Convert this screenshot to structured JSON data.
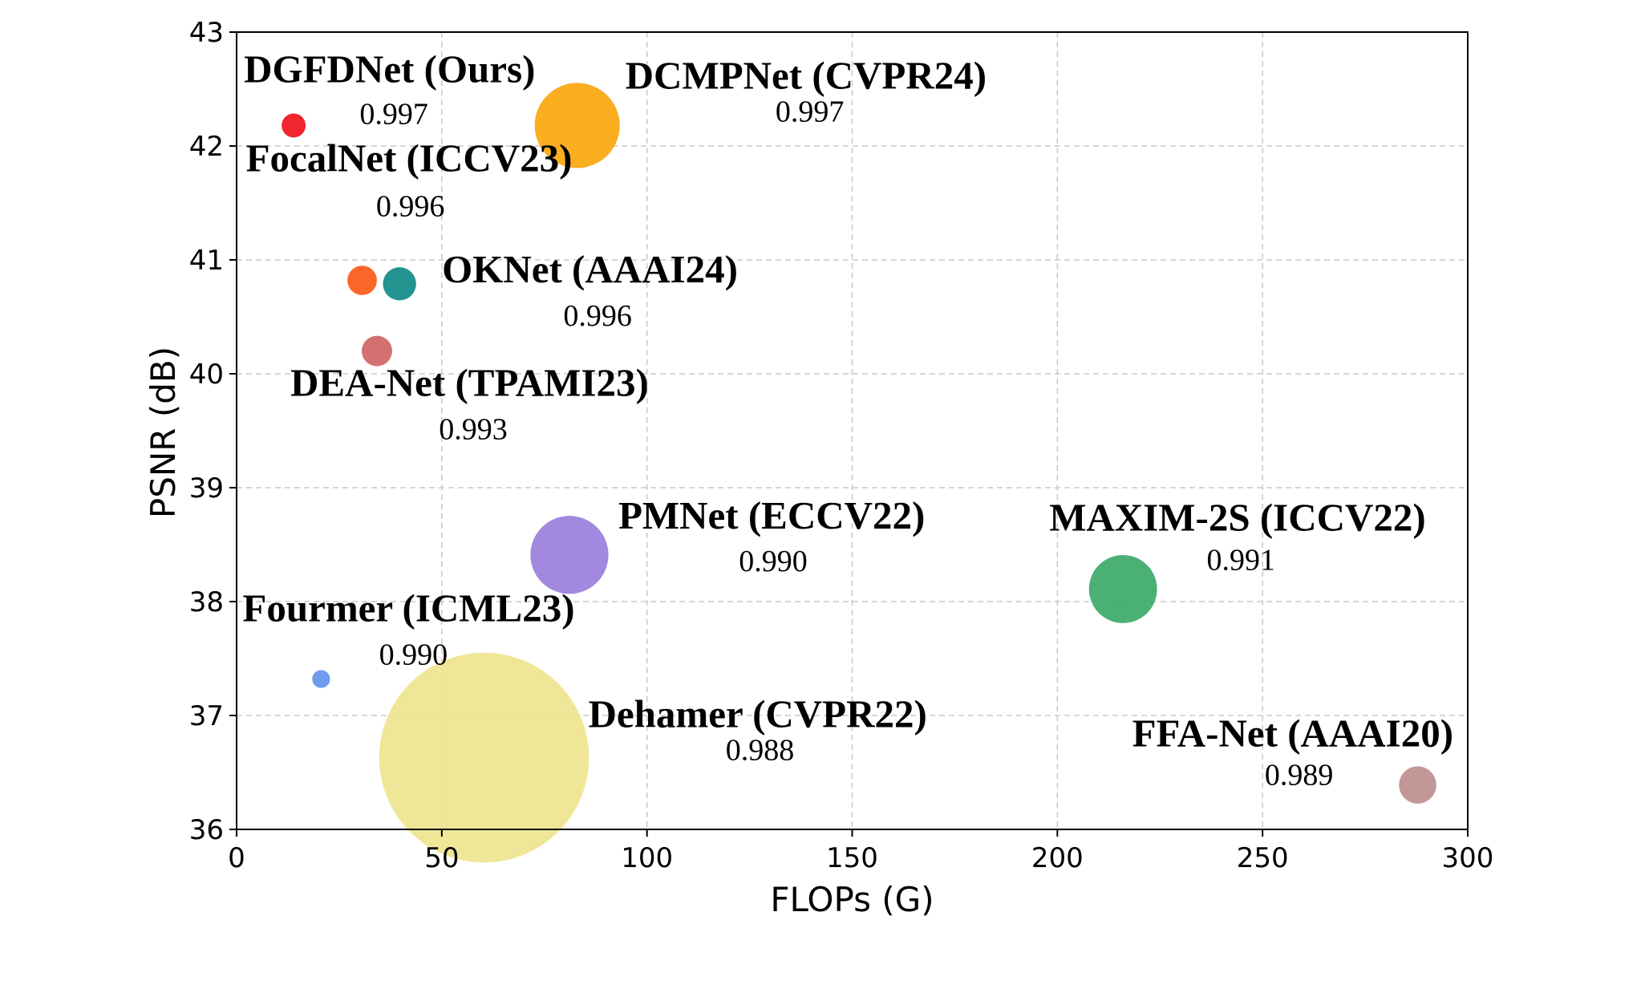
{
  "chart_data": {
    "type": "scatter",
    "title": "",
    "xlabel": "FLOPs (G)",
    "ylabel": "PSNR (dB)",
    "xlim": [
      0,
      300
    ],
    "ylim": [
      36,
      43
    ],
    "xticks": [
      "0",
      "50",
      "100",
      "150",
      "200",
      "250",
      "300"
    ],
    "yticks": [
      "36",
      "37",
      "38",
      "39",
      "40",
      "41",
      "42",
      "43"
    ],
    "grid": true,
    "points": [
      {
        "name": "DGFDNet (Ours)",
        "ssim": "0.997",
        "flops": 13.9,
        "psnr": 42.18,
        "params_rel": 1.0,
        "color": "#f0141e"
      },
      {
        "name": "DCMPNet (CVPR24)",
        "ssim": "0.997",
        "flops": 83.0,
        "psnr": 42.18,
        "params_rel": 12.5,
        "color": "#fba80e"
      },
      {
        "name": "FocalNet (ICCV23)",
        "ssim": "0.996",
        "flops": 30.6,
        "psnr": 40.82,
        "params_rel": 1.5,
        "color": "#fc5a19"
      },
      {
        "name": "OKNet (AAAI24)",
        "ssim": "0.996",
        "flops": 39.7,
        "psnr": 40.79,
        "params_rel": 1.9,
        "color": "#128c87"
      },
      {
        "name": "DEA-Net (TPAMI23)",
        "ssim": "0.993",
        "flops": 34.2,
        "psnr": 40.2,
        "params_rel": 1.6,
        "color": "#d06666"
      },
      {
        "name": "PMNet (ECCV22)",
        "ssim": "0.990",
        "flops": 81.1,
        "psnr": 38.41,
        "params_rel": 10.5,
        "color": "#9b7fdd"
      },
      {
        "name": "MAXIM-2S (ICCV22)",
        "ssim": "0.991",
        "flops": 216.0,
        "psnr": 38.11,
        "params_rel": 8.0,
        "color": "#3daa6c"
      },
      {
        "name": "Fourmer (ICML23)",
        "ssim": "0.990",
        "flops": 20.6,
        "psnr": 37.32,
        "params_rel": 0.55,
        "color": "#6495ed"
      },
      {
        "name": "Dehamer (CVPR22)",
        "ssim": "0.988",
        "flops": 60.3,
        "psnr": 36.63,
        "params_rel": 76.0,
        "color": "#eee58f"
      },
      {
        "name": "FFA-Net (AAAI20)",
        "ssim": "0.989",
        "flops": 287.8,
        "psnr": 36.39,
        "params_rel": 2.4,
        "color": "#c08f8f"
      }
    ]
  }
}
